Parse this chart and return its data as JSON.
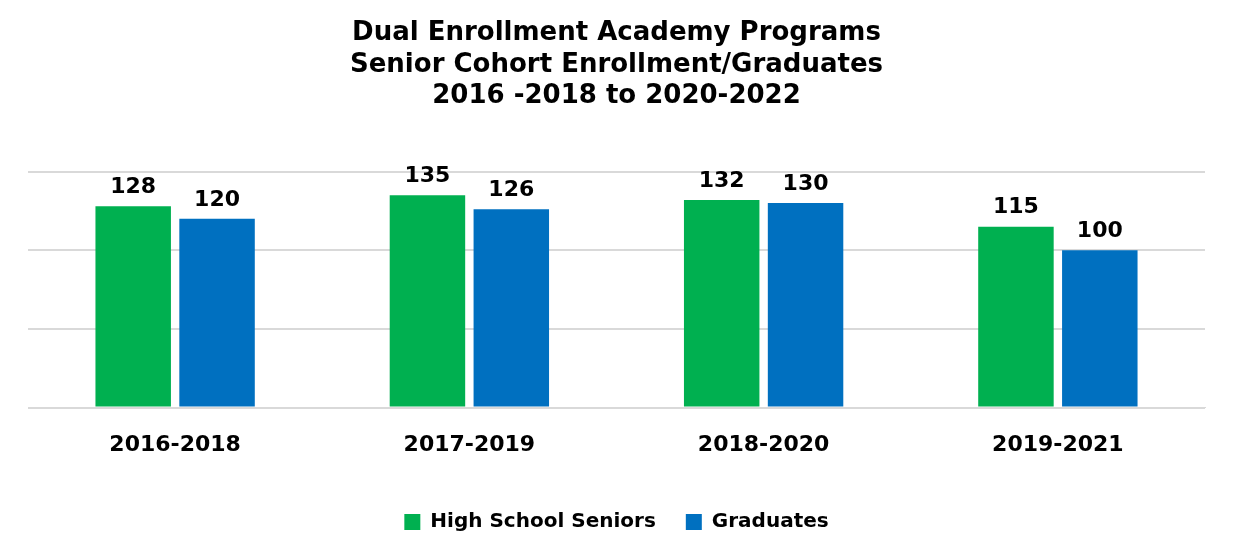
{
  "chart_data": {
    "type": "bar",
    "title": "Dual Enrollment Academy Programs\nSenior Cohort Enrollment/Graduates\n2016 -2018 to 2020-2022",
    "categories": [
      "2016-2018",
      "2017-2019",
      "2018-2020",
      "2019-2021"
    ],
    "series": [
      {
        "name": "High School Seniors",
        "color": "#00b050",
        "values": [
          128,
          135,
          132,
          115
        ]
      },
      {
        "name": "Graduates",
        "color": "#0070c0",
        "values": [
          120,
          126,
          130,
          100
        ]
      }
    ],
    "ylim": [
      0,
      150
    ],
    "yticks": [
      {
        "value": 0,
        "label": null
      },
      {
        "value": 50,
        "label": null
      },
      {
        "value": 100,
        "label": null
      },
      {
        "value": 150,
        "label": null
      }
    ],
    "tick_labels": "x",
    "grid": "y",
    "legend": "bottom",
    "data_labels": true
  }
}
